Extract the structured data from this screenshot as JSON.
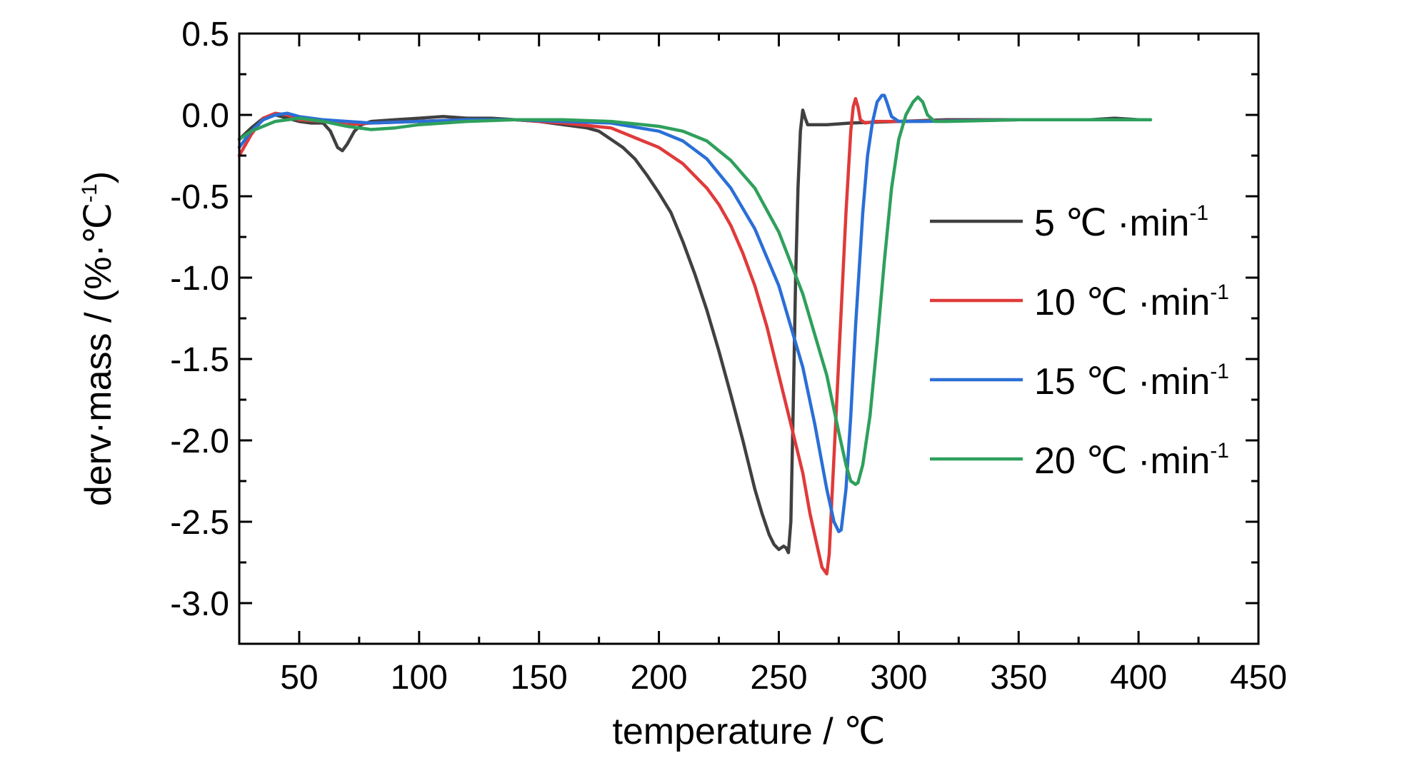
{
  "chart_data": {
    "type": "line",
    "xlabel": "temperature / ℃",
    "ylabel": "derv·mass / (%·℃",
    "ylabel_sup": "-1",
    "ylabel_close": ")",
    "xlim": [
      25,
      450
    ],
    "ylim": [
      -3.25,
      0.5
    ],
    "xticks": [
      50,
      100,
      150,
      200,
      250,
      300,
      350,
      400,
      450
    ],
    "yticks": [
      0.5,
      0.0,
      -0.5,
      -1.0,
      -1.5,
      -2.0,
      -2.5,
      -3.0
    ],
    "xtick_labels": [
      "50",
      "100",
      "150",
      "200",
      "250",
      "300",
      "350",
      "400",
      "450"
    ],
    "ytick_labels": [
      "0.5",
      "0.0",
      "-0.5",
      "-1.0",
      "-1.5",
      "-2.0",
      "-2.5",
      "-3.0"
    ],
    "grid": false,
    "legend_position": "right",
    "series": [
      {
        "name": "5 ℃ ·min",
        "name_sup": "-1",
        "color": "#404040",
        "x": [
          25,
          30,
          35,
          40,
          45,
          50,
          55,
          60,
          63,
          66,
          68,
          70,
          73,
          76,
          80,
          90,
          100,
          110,
          120,
          130,
          140,
          150,
          160,
          170,
          175,
          180,
          185,
          190,
          195,
          200,
          205,
          210,
          215,
          220,
          225,
          230,
          235,
          240,
          243,
          246,
          248,
          250,
          252,
          253,
          254,
          255,
          256,
          257,
          258,
          259,
          260,
          261,
          262,
          265,
          270,
          280,
          300,
          320,
          340,
          360,
          380,
          390,
          400,
          405
        ],
        "y": [
          -0.15,
          -0.08,
          -0.02,
          0.0,
          -0.02,
          -0.04,
          -0.05,
          -0.05,
          -0.1,
          -0.2,
          -0.22,
          -0.18,
          -0.1,
          -0.06,
          -0.04,
          -0.03,
          -0.02,
          -0.01,
          -0.02,
          -0.02,
          -0.03,
          -0.04,
          -0.06,
          -0.08,
          -0.1,
          -0.15,
          -0.2,
          -0.27,
          -0.37,
          -0.48,
          -0.6,
          -0.78,
          -0.98,
          -1.2,
          -1.45,
          -1.72,
          -2.0,
          -2.3,
          -2.45,
          -2.58,
          -2.64,
          -2.67,
          -2.65,
          -2.66,
          -2.69,
          -2.5,
          -1.8,
          -1.0,
          -0.45,
          -0.1,
          0.03,
          -0.02,
          -0.06,
          -0.06,
          -0.06,
          -0.05,
          -0.04,
          -0.03,
          -0.03,
          -0.03,
          -0.03,
          -0.02,
          -0.03,
          -0.03
        ]
      },
      {
        "name": "10 ℃ ·min",
        "name_sup": "-1",
        "color": "#e03a3a",
        "x": [
          25,
          30,
          35,
          40,
          45,
          50,
          60,
          70,
          80,
          100,
          120,
          140,
          160,
          180,
          200,
          210,
          220,
          225,
          230,
          235,
          240,
          245,
          250,
          255,
          260,
          263,
          266,
          268,
          270,
          271,
          272,
          274,
          276,
          278,
          280,
          281,
          282,
          283,
          284,
          286,
          290,
          300,
          350,
          405
        ],
        "y": [
          -0.25,
          -0.12,
          -0.02,
          0.01,
          0.0,
          -0.03,
          -0.04,
          -0.06,
          -0.05,
          -0.04,
          -0.03,
          -0.03,
          -0.05,
          -0.08,
          -0.2,
          -0.3,
          -0.45,
          -0.55,
          -0.68,
          -0.85,
          -1.05,
          -1.3,
          -1.6,
          -1.9,
          -2.2,
          -2.45,
          -2.65,
          -2.78,
          -2.82,
          -2.7,
          -2.4,
          -1.8,
          -1.2,
          -0.6,
          -0.1,
          0.05,
          0.1,
          0.05,
          -0.03,
          -0.05,
          -0.04,
          -0.04,
          -0.03,
          -0.03
        ]
      },
      {
        "name": "15 ℃ ·min",
        "name_sup": "-1",
        "color": "#2a6fd6",
        "x": [
          25,
          30,
          35,
          40,
          45,
          50,
          60,
          70,
          80,
          100,
          120,
          140,
          160,
          180,
          200,
          210,
          220,
          230,
          240,
          250,
          260,
          265,
          270,
          273,
          275,
          276,
          278,
          280,
          282,
          285,
          287,
          289,
          291,
          293,
          294,
          295,
          297,
          300,
          310,
          350,
          405
        ],
        "y": [
          -0.2,
          -0.1,
          -0.03,
          0.0,
          0.01,
          -0.01,
          -0.03,
          -0.04,
          -0.05,
          -0.04,
          -0.03,
          -0.03,
          -0.04,
          -0.05,
          -0.1,
          -0.16,
          -0.27,
          -0.45,
          -0.7,
          -1.05,
          -1.55,
          -1.9,
          -2.3,
          -2.5,
          -2.56,
          -2.55,
          -2.3,
          -1.85,
          -1.3,
          -0.6,
          -0.25,
          -0.05,
          0.08,
          0.12,
          0.12,
          0.08,
          -0.01,
          -0.04,
          -0.04,
          -0.03,
          -0.03
        ]
      },
      {
        "name": "20 ℃ ·min",
        "name_sup": "-1",
        "color": "#2ea05c",
        "x": [
          25,
          30,
          40,
          50,
          60,
          70,
          80,
          90,
          100,
          120,
          140,
          160,
          180,
          200,
          210,
          220,
          230,
          240,
          250,
          260,
          270,
          275,
          278,
          280,
          282,
          283,
          285,
          288,
          291,
          294,
          297,
          300,
          303,
          306,
          308,
          310,
          312,
          315,
          320,
          350,
          405
        ],
        "y": [
          -0.15,
          -0.1,
          -0.04,
          -0.02,
          -0.04,
          -0.07,
          -0.09,
          -0.08,
          -0.06,
          -0.04,
          -0.03,
          -0.03,
          -0.04,
          -0.07,
          -0.1,
          -0.16,
          -0.28,
          -0.45,
          -0.72,
          -1.1,
          -1.6,
          -1.95,
          -2.15,
          -2.25,
          -2.27,
          -2.26,
          -2.15,
          -1.85,
          -1.4,
          -0.9,
          -0.45,
          -0.15,
          0.0,
          0.08,
          0.11,
          0.08,
          0.0,
          -0.04,
          -0.04,
          -0.03,
          -0.03
        ]
      }
    ]
  }
}
